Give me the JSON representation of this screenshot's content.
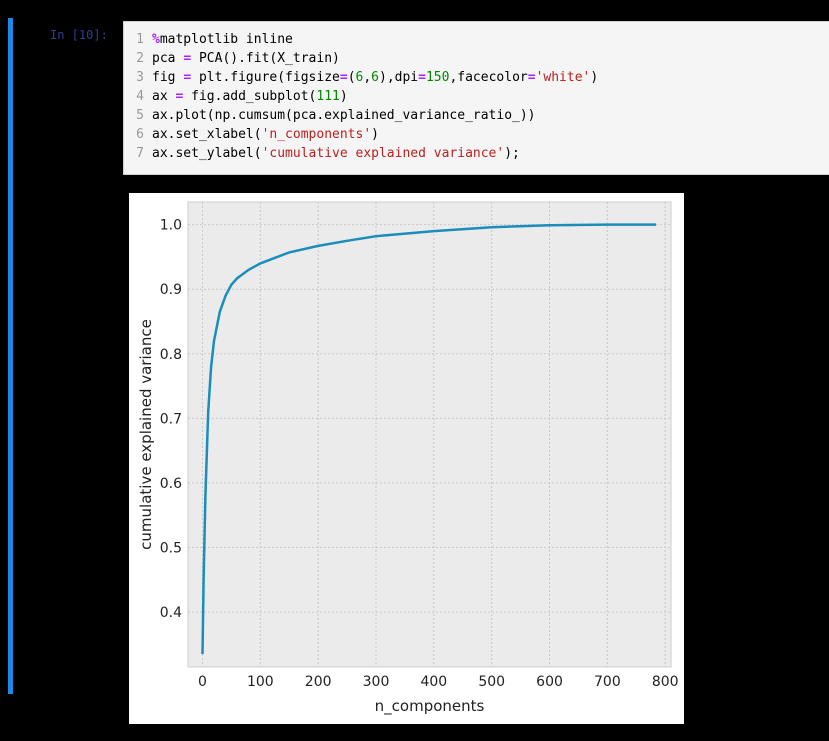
{
  "prompt": "In [10]:",
  "code_lines": [
    {
      "n": "1",
      "parts": [
        [
          "kw",
          "%"
        ],
        [
          "",
          "matplotlib inline"
        ]
      ]
    },
    {
      "n": "2",
      "parts": [
        [
          "",
          "pca "
        ],
        [
          "op",
          "="
        ],
        [
          "",
          " PCA().fit(X_train)"
        ]
      ]
    },
    {
      "n": "3",
      "parts": [
        [
          "",
          "fig "
        ],
        [
          "op",
          "="
        ],
        [
          "",
          " plt.figure(figsize"
        ],
        [
          "op",
          "="
        ],
        [
          "",
          "("
        ],
        [
          "num",
          "6"
        ],
        [
          "",
          ","
        ],
        [
          "num",
          "6"
        ],
        [
          "",
          "),dpi"
        ],
        [
          "op",
          "="
        ],
        [
          "num",
          "150"
        ],
        [
          "",
          ",facecolor"
        ],
        [
          "op",
          "="
        ],
        [
          "str",
          "'white'"
        ],
        [
          "",
          ")"
        ]
      ]
    },
    {
      "n": "4",
      "parts": [
        [
          "",
          "ax "
        ],
        [
          "op",
          "="
        ],
        [
          "",
          " fig.add_subplot("
        ],
        [
          "num",
          "111"
        ],
        [
          "",
          ")"
        ]
      ]
    },
    {
      "n": "5",
      "parts": [
        [
          "",
          "ax.plot(np.cumsum(pca.explained_variance_ratio_))"
        ]
      ]
    },
    {
      "n": "6",
      "parts": [
        [
          "",
          "ax.set_xlabel("
        ],
        [
          "str",
          "'n_components'"
        ],
        [
          "",
          ")"
        ]
      ]
    },
    {
      "n": "7",
      "parts": [
        [
          "",
          "ax.set_ylabel("
        ],
        [
          "str",
          "'cumulative explained variance'"
        ],
        [
          "",
          ");"
        ]
      ]
    }
  ],
  "chart_data": {
    "type": "line",
    "xlabel": "n_components",
    "ylabel": "cumulative explained variance",
    "xlim": [
      -25,
      810
    ],
    "ylim": [
      0.315,
      1.035
    ],
    "xticks": [
      0,
      100,
      200,
      300,
      400,
      500,
      600,
      700,
      800
    ],
    "yticks": [
      0.4,
      0.5,
      0.6,
      0.7,
      0.8,
      0.9,
      1.0
    ],
    "ytick_labels": [
      "0.4",
      "0.5",
      "0.6",
      "0.7",
      "0.8",
      "0.9",
      "1.0"
    ],
    "grid": true,
    "line_color": "#1a8dbb",
    "x": [
      0,
      2,
      5,
      10,
      15,
      20,
      30,
      40,
      50,
      60,
      80,
      100,
      150,
      200,
      250,
      300,
      400,
      500,
      600,
      700,
      784
    ],
    "y": [
      0.335,
      0.45,
      0.58,
      0.71,
      0.78,
      0.82,
      0.865,
      0.89,
      0.907,
      0.917,
      0.93,
      0.94,
      0.957,
      0.967,
      0.975,
      0.982,
      0.99,
      0.996,
      0.999,
      1.0,
      1.0
    ]
  }
}
